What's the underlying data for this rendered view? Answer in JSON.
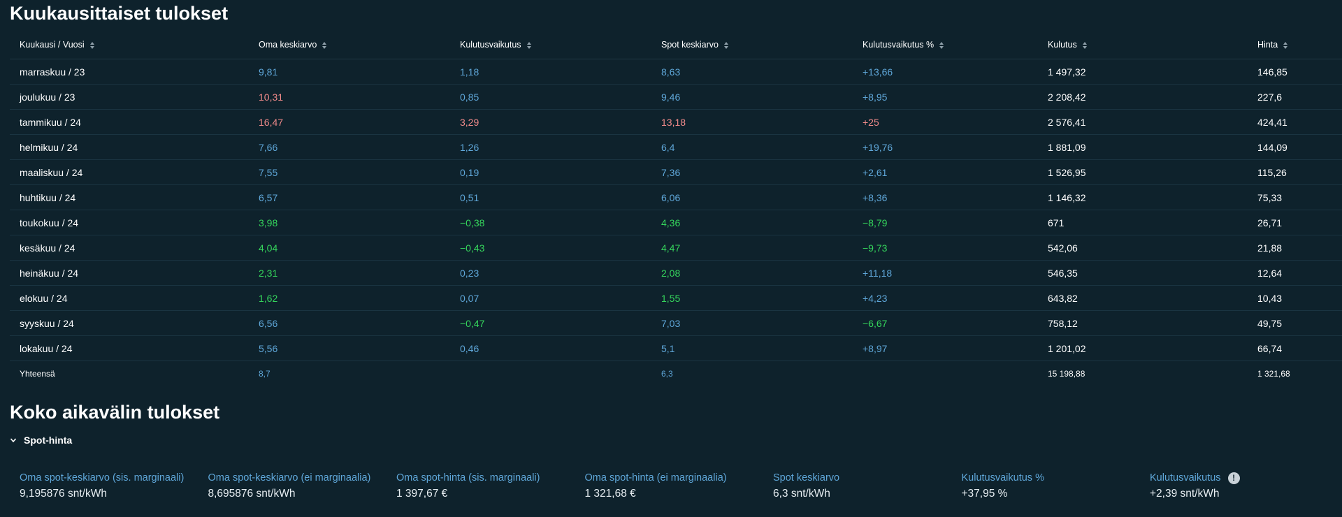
{
  "monthly": {
    "title": "Kuukausittaiset tulokset",
    "columns": [
      "Kuukausi / Vuosi",
      "Oma keskiarvo",
      "Kulutusvaikutus",
      "Spot keskiarvo",
      "Kulutusvaikutus %",
      "Kulutus",
      "Hinta"
    ],
    "rows": [
      [
        "marraskuu / 23",
        "9,81",
        "1,18",
        "8,63",
        "+13,66",
        "1 497,32",
        "146,85"
      ],
      [
        "joulukuu / 23",
        "10,31",
        "0,85",
        "9,46",
        "+8,95",
        "2 208,42",
        "227,6"
      ],
      [
        "tammikuu / 24",
        "16,47",
        "3,29",
        "13,18",
        "+25",
        "2 576,41",
        "424,41"
      ],
      [
        "helmikuu / 24",
        "7,66",
        "1,26",
        "6,4",
        "+19,76",
        "1 881,09",
        "144,09"
      ],
      [
        "maaliskuu / 24",
        "7,55",
        "0,19",
        "7,36",
        "+2,61",
        "1 526,95",
        "115,26"
      ],
      [
        "huhtikuu / 24",
        "6,57",
        "0,51",
        "6,06",
        "+8,36",
        "1 146,32",
        "75,33"
      ],
      [
        "toukokuu / 24",
        "3,98",
        "−0,38",
        "4,36",
        "−8,79",
        "671",
        "26,71"
      ],
      [
        "kesäkuu / 24",
        "4,04",
        "−0,43",
        "4,47",
        "−9,73",
        "542,06",
        "21,88"
      ],
      [
        "heinäkuu / 24",
        "2,31",
        "0,23",
        "2,08",
        "+11,18",
        "546,35",
        "12,64"
      ],
      [
        "elokuu / 24",
        "1,62",
        "0,07",
        "1,55",
        "+4,23",
        "643,82",
        "10,43"
      ],
      [
        "syyskuu / 24",
        "6,56",
        "−0,47",
        "7,03",
        "−6,67",
        "758,12",
        "49,75"
      ],
      [
        "lokakuu / 24",
        "5,56",
        "0,46",
        "5,1",
        "+8,97",
        "1 201,02",
        "66,74"
      ]
    ],
    "row_colors": [
      [
        "white",
        "blue",
        "blue",
        "blue",
        "blue",
        "white",
        "white"
      ],
      [
        "white",
        "red",
        "blue",
        "blue",
        "blue",
        "white",
        "white"
      ],
      [
        "white",
        "red",
        "red",
        "red",
        "red",
        "white",
        "white"
      ],
      [
        "white",
        "blue",
        "blue",
        "blue",
        "blue",
        "white",
        "white"
      ],
      [
        "white",
        "blue",
        "blue",
        "blue",
        "blue",
        "white",
        "white"
      ],
      [
        "white",
        "blue",
        "blue",
        "blue",
        "blue",
        "white",
        "white"
      ],
      [
        "white",
        "green",
        "green",
        "green",
        "green",
        "white",
        "white"
      ],
      [
        "white",
        "green",
        "green",
        "green",
        "green",
        "white",
        "white"
      ],
      [
        "white",
        "green",
        "blue",
        "green",
        "blue",
        "white",
        "white"
      ],
      [
        "white",
        "green",
        "blue",
        "green",
        "blue",
        "white",
        "white"
      ],
      [
        "white",
        "blue",
        "green",
        "blue",
        "green",
        "white",
        "white"
      ],
      [
        "white",
        "blue",
        "blue",
        "blue",
        "blue",
        "white",
        "white"
      ]
    ],
    "total": [
      "Yhteensä",
      "8,7",
      "",
      "6,3",
      "",
      "15 198,88",
      "1 321,68"
    ],
    "total_colors": [
      "white",
      "blue",
      "white",
      "blue",
      "white",
      "white",
      "white"
    ]
  },
  "colors": {
    "blue": "#5fa7d9",
    "red": "#f08a8a",
    "green": "#35d65c",
    "background": "#0e222c"
  },
  "summary": {
    "title": "Koko aikavälin tulokset",
    "section_label": "Spot-hinta",
    "stats": [
      {
        "label": "Oma spot-keskiarvo (sis. marginaali)",
        "value": "9,195876 snt/kWh",
        "info": false
      },
      {
        "label": "Oma spot-keskiarvo (ei marginaalia)",
        "value": "8,695876 snt/kWh",
        "info": false
      },
      {
        "label": "Oma spot-hinta (sis. marginaali)",
        "value": "1 397,67 €",
        "info": false
      },
      {
        "label": "Oma spot-hinta (ei marginaalia)",
        "value": "1 321,68 €",
        "info": false
      },
      {
        "label": "Spot keskiarvo",
        "value": "6,3 snt/kWh",
        "info": false
      },
      {
        "label": "Kulutusvaikutus %",
        "value": "+37,95 %",
        "info": false
      },
      {
        "label": "Kulutusvaikutus",
        "value": "+2,39 snt/kWh",
        "info": true
      }
    ],
    "info_glyph": "!"
  }
}
